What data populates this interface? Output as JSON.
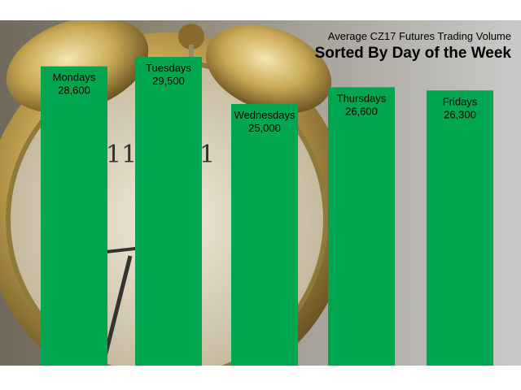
{
  "chart_data": {
    "type": "bar",
    "subtitle": "Average CZ17 Futures Trading Volume",
    "title": "Sorted By Day of the Week",
    "categories": [
      "Mondays",
      "Tuesdays",
      "Wednesdays",
      "Thursdays",
      "Fridays"
    ],
    "values": [
      28600,
      29500,
      25000,
      26600,
      26300
    ],
    "value_labels": [
      "28,600",
      "29,500",
      "25,000",
      "26,600",
      "26,300"
    ],
    "ylim": [
      0,
      33000
    ],
    "grid": false,
    "legend": "none",
    "bar_color": "#00a64f",
    "background": "alarm-clock-photo"
  }
}
